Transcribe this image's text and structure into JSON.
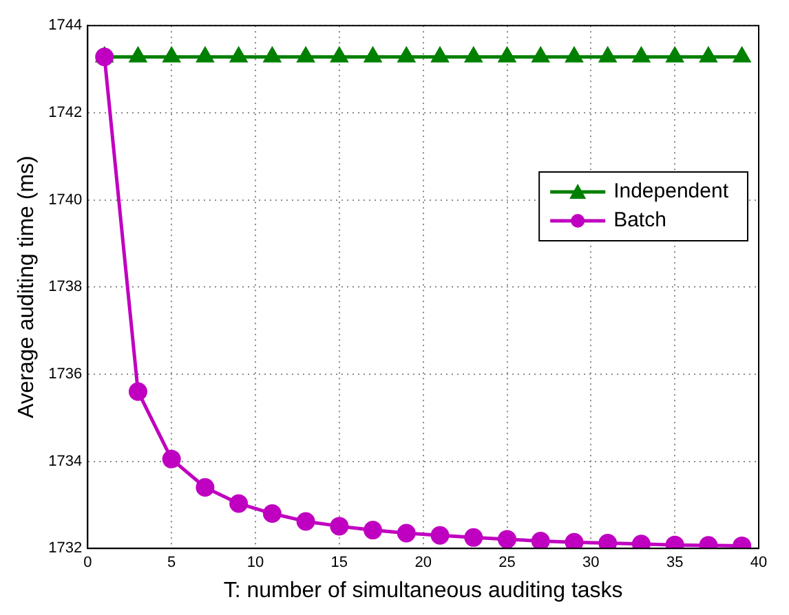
{
  "chart_data": {
    "type": "line",
    "xlabel": "T: number of simultaneous auditing tasks",
    "ylabel": "Average auditing time (ms)",
    "x": [
      1,
      3,
      5,
      7,
      9,
      11,
      13,
      15,
      17,
      19,
      21,
      23,
      25,
      27,
      29,
      31,
      33,
      35,
      37,
      39
    ],
    "xlim": [
      0,
      40
    ],
    "xticks": [
      0,
      5,
      10,
      15,
      20,
      25,
      30,
      35,
      40
    ],
    "ylim": [
      1732,
      1744
    ],
    "yticks": [
      1732,
      1734,
      1736,
      1738,
      1740,
      1742,
      1744
    ],
    "grid": true,
    "legend": "right",
    "line_style": "solid",
    "series": [
      {
        "name": "Independent",
        "color": "#008000",
        "marker": "triangle",
        "values": [
          1743.28,
          1743.28,
          1743.28,
          1743.28,
          1743.28,
          1743.28,
          1743.28,
          1743.28,
          1743.28,
          1743.28,
          1743.28,
          1743.28,
          1743.28,
          1743.28,
          1743.28,
          1743.28,
          1743.28,
          1743.28,
          1743.28,
          1743.28
        ]
      },
      {
        "name": "Batch",
        "color": "#c000c0",
        "marker": "circle",
        "values": [
          1743.28,
          1735.6,
          1734.05,
          1733.4,
          1733.03,
          1732.8,
          1732.62,
          1732.51,
          1732.42,
          1732.35,
          1732.3,
          1732.25,
          1732.21,
          1732.17,
          1732.14,
          1732.12,
          1732.1,
          1732.08,
          1732.07,
          1732.06
        ]
      }
    ]
  }
}
